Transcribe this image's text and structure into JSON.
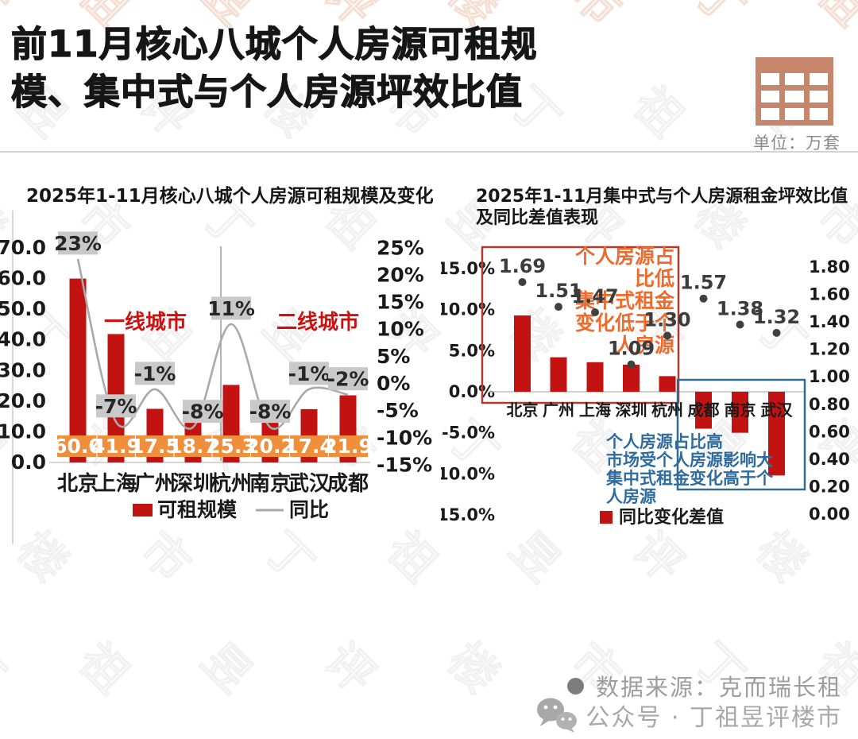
{
  "header": {
    "title_line1": "前11月核心八城个人房源可租规",
    "title_line2": "模、集中式与个人房源坪效比值",
    "unit_label": "单位：万套"
  },
  "footer": {
    "source_text": "数据来源：克而瑞长租",
    "account_text": "公众号 · 丁祖昱评楼市"
  },
  "watermark": {
    "text": "丁祖昱评楼市"
  },
  "colors": {
    "bar_red": "#c31212",
    "line_gray": "#a9a9a9",
    "band_orange": "#ef8e3b",
    "label_box_gray": "#c9c9c9",
    "axis_text": "#1a1a1a",
    "dot_gray": "#404040",
    "red_box": "#b03a2e",
    "blue_box": "#336b8d",
    "orange_text": "#ed6b2d",
    "blue_text": "#2e6b9e",
    "group_label_red": "#cc1111"
  },
  "chart_data": [
    {
      "type": "bar",
      "title": "2025年1-11月核心八城个人房源可租规模及变化（万套）",
      "categories": [
        "北京",
        "上海",
        "广州",
        "深圳",
        "杭州",
        "南京",
        "武汉",
        "成都"
      ],
      "series": [
        {
          "name": "可租规模",
          "type": "bar",
          "axis": "left",
          "color": "#c31212",
          "values": [
            60.0,
            41.9,
            17.5,
            18.7,
            25.3,
            20.2,
            17.4,
            21.9
          ]
        },
        {
          "name": "同比",
          "type": "line",
          "axis": "right",
          "color": "#a9a9a9",
          "unit": "%",
          "values": [
            23,
            -7,
            -1,
            -8,
            11,
            -8,
            -1,
            -2
          ]
        }
      ],
      "left_axis": {
        "min": 0,
        "max": 70,
        "step": 10,
        "decimals": 1
      },
      "right_axis": {
        "min": -15,
        "max": 25,
        "step": 5,
        "suffix": "%"
      },
      "group_labels": [
        "一线城市",
        "二线城市"
      ],
      "legend": [
        {
          "label": "可租规模",
          "swatch": "bar"
        },
        {
          "label": "同比",
          "swatch": "line"
        }
      ]
    },
    {
      "type": "bar",
      "title_line1": "2025年1-11月集中式与个人房源租金坪效比值",
      "title_line2": "及同比差值表现",
      "categories": [
        "北京",
        "广州",
        "上海",
        "深圳",
        "杭州",
        "成都",
        "南京",
        "武汉"
      ],
      "series": [
        {
          "name": "同比变化差值",
          "type": "bar",
          "axis": "left",
          "color": "#c31212",
          "unit": "%",
          "values": [
            9.3,
            4.2,
            3.6,
            3.3,
            1.9,
            -4.5,
            -5.0,
            -10.2
          ]
        },
        {
          "name": "租金坪效比值",
          "type": "scatter",
          "axis": "right",
          "color": "#404040",
          "values": [
            1.69,
            1.51,
            1.47,
            1.09,
            1.3,
            1.57,
            1.38,
            1.32
          ]
        }
      ],
      "left_axis": {
        "min": -15,
        "max": 15,
        "step": 5,
        "decimals": 1,
        "suffix": "%"
      },
      "right_axis": {
        "min": 0,
        "max": 1.8,
        "step": 0.2,
        "decimals": 2
      },
      "annotations": {
        "orange_lines": [
          "个人房源占",
          "比低",
          "集中式租金",
          "变化低于个",
          "人房源"
        ],
        "blue_lines": [
          "个人房源占比高",
          "市场受个人房源影响大",
          "集中式租金变化高于个",
          "人房源"
        ]
      },
      "legend": [
        {
          "label": "同比变化差值",
          "swatch": "bar"
        }
      ]
    }
  ]
}
